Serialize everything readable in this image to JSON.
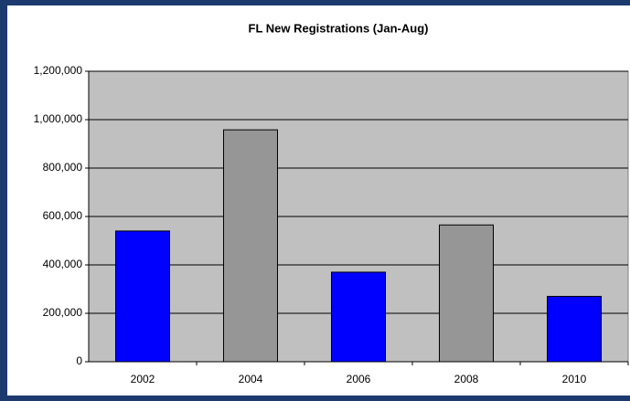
{
  "chart_data": {
    "type": "bar",
    "title": "FL New Registrations (Jan-Aug)",
    "categories": [
      "2002",
      "2004",
      "2006",
      "2008",
      "2010"
    ],
    "values": [
      540000,
      958000,
      370000,
      565000,
      270000
    ],
    "colors": [
      "#0000ff",
      "#969696",
      "#0000ff",
      "#969696",
      "#0000ff"
    ],
    "ylim": [
      0,
      1200000
    ],
    "yticks": [
      0,
      {
        "value": 200000,
        "label": "200,000"
      },
      {
        "value": 400000,
        "label": "400,000"
      },
      {
        "value": 600000,
        "label": "600,000"
      },
      {
        "value": 800000,
        "label": "800,000"
      },
      {
        "value": 1000000,
        "label": "1,000,000"
      },
      {
        "value": 1200000,
        "label": "1,200,000"
      }
    ],
    "grid": true
  }
}
